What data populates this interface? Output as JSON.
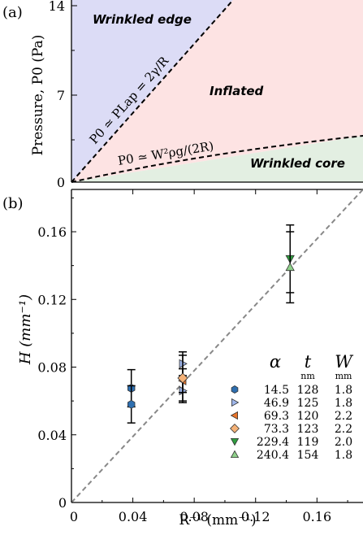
{
  "panel_a": {
    "label": "(a)",
    "ylabel": "Pressure, P0 (Pa)",
    "yticks": [
      "0",
      "7",
      "14"
    ],
    "regions": {
      "wrinkled_edge": "Wrinkled edge",
      "inflated": "Inflated",
      "wrinkled_core": "Wrinkled core"
    },
    "line_labels": {
      "laplace": "P0 ≃ PLap = 2γ/R",
      "gravity": "P0 ≃ W²ρg/(2R)"
    },
    "colors": {
      "wrinkled_edge": "#dcdcf6",
      "inflated": "#fde3e3",
      "wrinkled_core": "#e3efe2"
    }
  },
  "panel_b": {
    "label": "(b)",
    "xlabel": "R⁻¹ (mm⁻¹)",
    "ylabel": "H (mm⁻¹)",
    "xticks": [
      "0",
      "0.04",
      "0.08",
      "0.12",
      "0.16"
    ],
    "yticks": [
      "0",
      "0.04",
      "0.08",
      "0.12",
      "0.16"
    ],
    "legend": {
      "headers": {
        "alpha": "α",
        "t": "t",
        "t_unit": "nm",
        "w": "W",
        "w_unit": "mm"
      },
      "rows": [
        {
          "alpha": "14.5",
          "t": "128",
          "w": "1.8"
        },
        {
          "alpha": "46.9",
          "t": "125",
          "w": "1.8"
        },
        {
          "alpha": "69.3",
          "t": "120",
          "w": "2.2"
        },
        {
          "alpha": "73.3",
          "t": "123",
          "w": "2.2"
        },
        {
          "alpha": "229.4",
          "t": "119",
          "w": "2.0"
        },
        {
          "alpha": "240.4",
          "t": "154",
          "w": "1.8"
        }
      ]
    }
  },
  "chart_data": [
    {
      "type": "area",
      "panel": "(a)",
      "ylabel": "Pressure, P0 (Pa)",
      "ylim": [
        0,
        14
      ],
      "yticks": [
        0,
        7,
        14
      ],
      "regions": [
        "Wrinkled edge",
        "Inflated",
        "Wrinkled core"
      ],
      "series": [
        {
          "name": "P0 ≃ PLap = 2γ/R",
          "style": "dashed",
          "x": [
            0,
            1
          ],
          "y": [
            0,
            20.9
          ]
        },
        {
          "name": "P0 ≃ W²ρg/(2R)",
          "style": "dashed",
          "x": [
            0,
            0.5,
            1
          ],
          "y": [
            0,
            2.0,
            3.7
          ]
        }
      ]
    },
    {
      "type": "scatter",
      "panel": "(b)",
      "xlabel": "R⁻¹ (mm⁻¹)",
      "ylabel": "H (mm⁻¹)",
      "xlim": [
        0,
        0.19
      ],
      "ylim": [
        0,
        0.185
      ],
      "reference_line": {
        "style": "dashed",
        "color": "#888888",
        "slope": 1.0
      },
      "series": [
        {
          "name": "14.5",
          "marker": "hexagon",
          "color": "#2e6fb0",
          "points": [
            [
              0.039,
              0.0675,
              0.011
            ],
            [
              0.039,
              0.058,
              0.011
            ]
          ]
        },
        {
          "name": "46.9",
          "marker": "triangle-right",
          "color": "#9fb6ea",
          "points": [
            [
              0.0725,
              0.082,
              0.007
            ],
            [
              0.0725,
              0.066,
              0.007
            ]
          ]
        },
        {
          "name": "69.3",
          "marker": "triangle-left",
          "color": "#e8742a",
          "points": [
            [
              0.0725,
              0.072,
              0.007
            ]
          ]
        },
        {
          "name": "73.3",
          "marker": "diamond",
          "color": "#f4b177",
          "points": [
            [
              0.0725,
              0.0735,
              0.0135
            ]
          ]
        },
        {
          "name": "229.4",
          "marker": "triangle-down",
          "color": "#2f9e3f",
          "points": [
            [
              0.1425,
              0.144,
              0.02
            ]
          ]
        },
        {
          "name": "240.4",
          "marker": "triangle-up",
          "color": "#8fd18b",
          "points": [
            [
              0.1425,
              0.139,
              0.021
            ]
          ]
        }
      ]
    }
  ]
}
